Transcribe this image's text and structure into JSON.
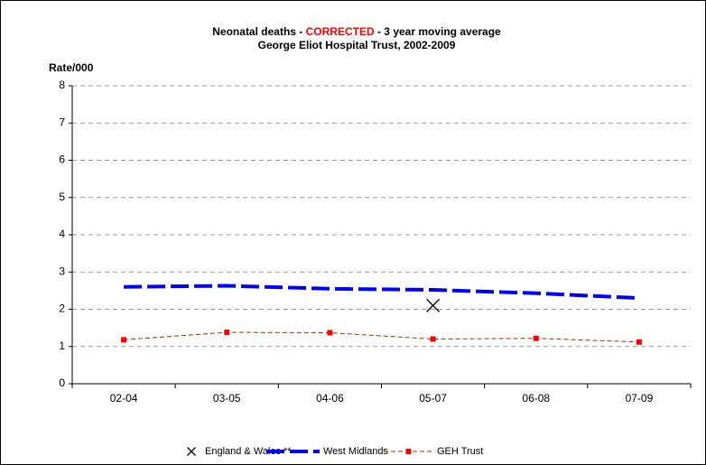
{
  "chart_data": {
    "type": "line",
    "title": [
      "Neonatal deaths - ",
      "CORRECTED",
      " - 3 year moving average"
    ],
    "title_colors": [
      "#000000",
      "#ff0000",
      "#000000"
    ],
    "subtitle": "George Eliot Hospital Trust, 2002-2009",
    "y_label": "Rate/000",
    "categories": [
      "02-04",
      "03-05",
      "04-06",
      "05-07",
      "06-08",
      "07-09"
    ],
    "series": [
      {
        "name": "England & Wales **",
        "color": "#000000",
        "values": [
          null,
          null,
          null,
          2.1,
          null,
          null
        ]
      },
      {
        "name": "West Midlands",
        "color": "#0000ff",
        "values": [
          2.6,
          2.63,
          2.55,
          2.52,
          2.43,
          2.3
        ]
      },
      {
        "name": "GEH Trust",
        "color": "#ff0000",
        "values": [
          1.18,
          1.38,
          1.37,
          1.2,
          1.22,
          1.12
        ]
      }
    ],
    "ylim": [
      0,
      8
    ],
    "yticks": [
      0,
      1,
      2,
      3,
      4,
      5,
      6,
      7,
      8
    ],
    "grid": true,
    "legend": "bottom"
  }
}
